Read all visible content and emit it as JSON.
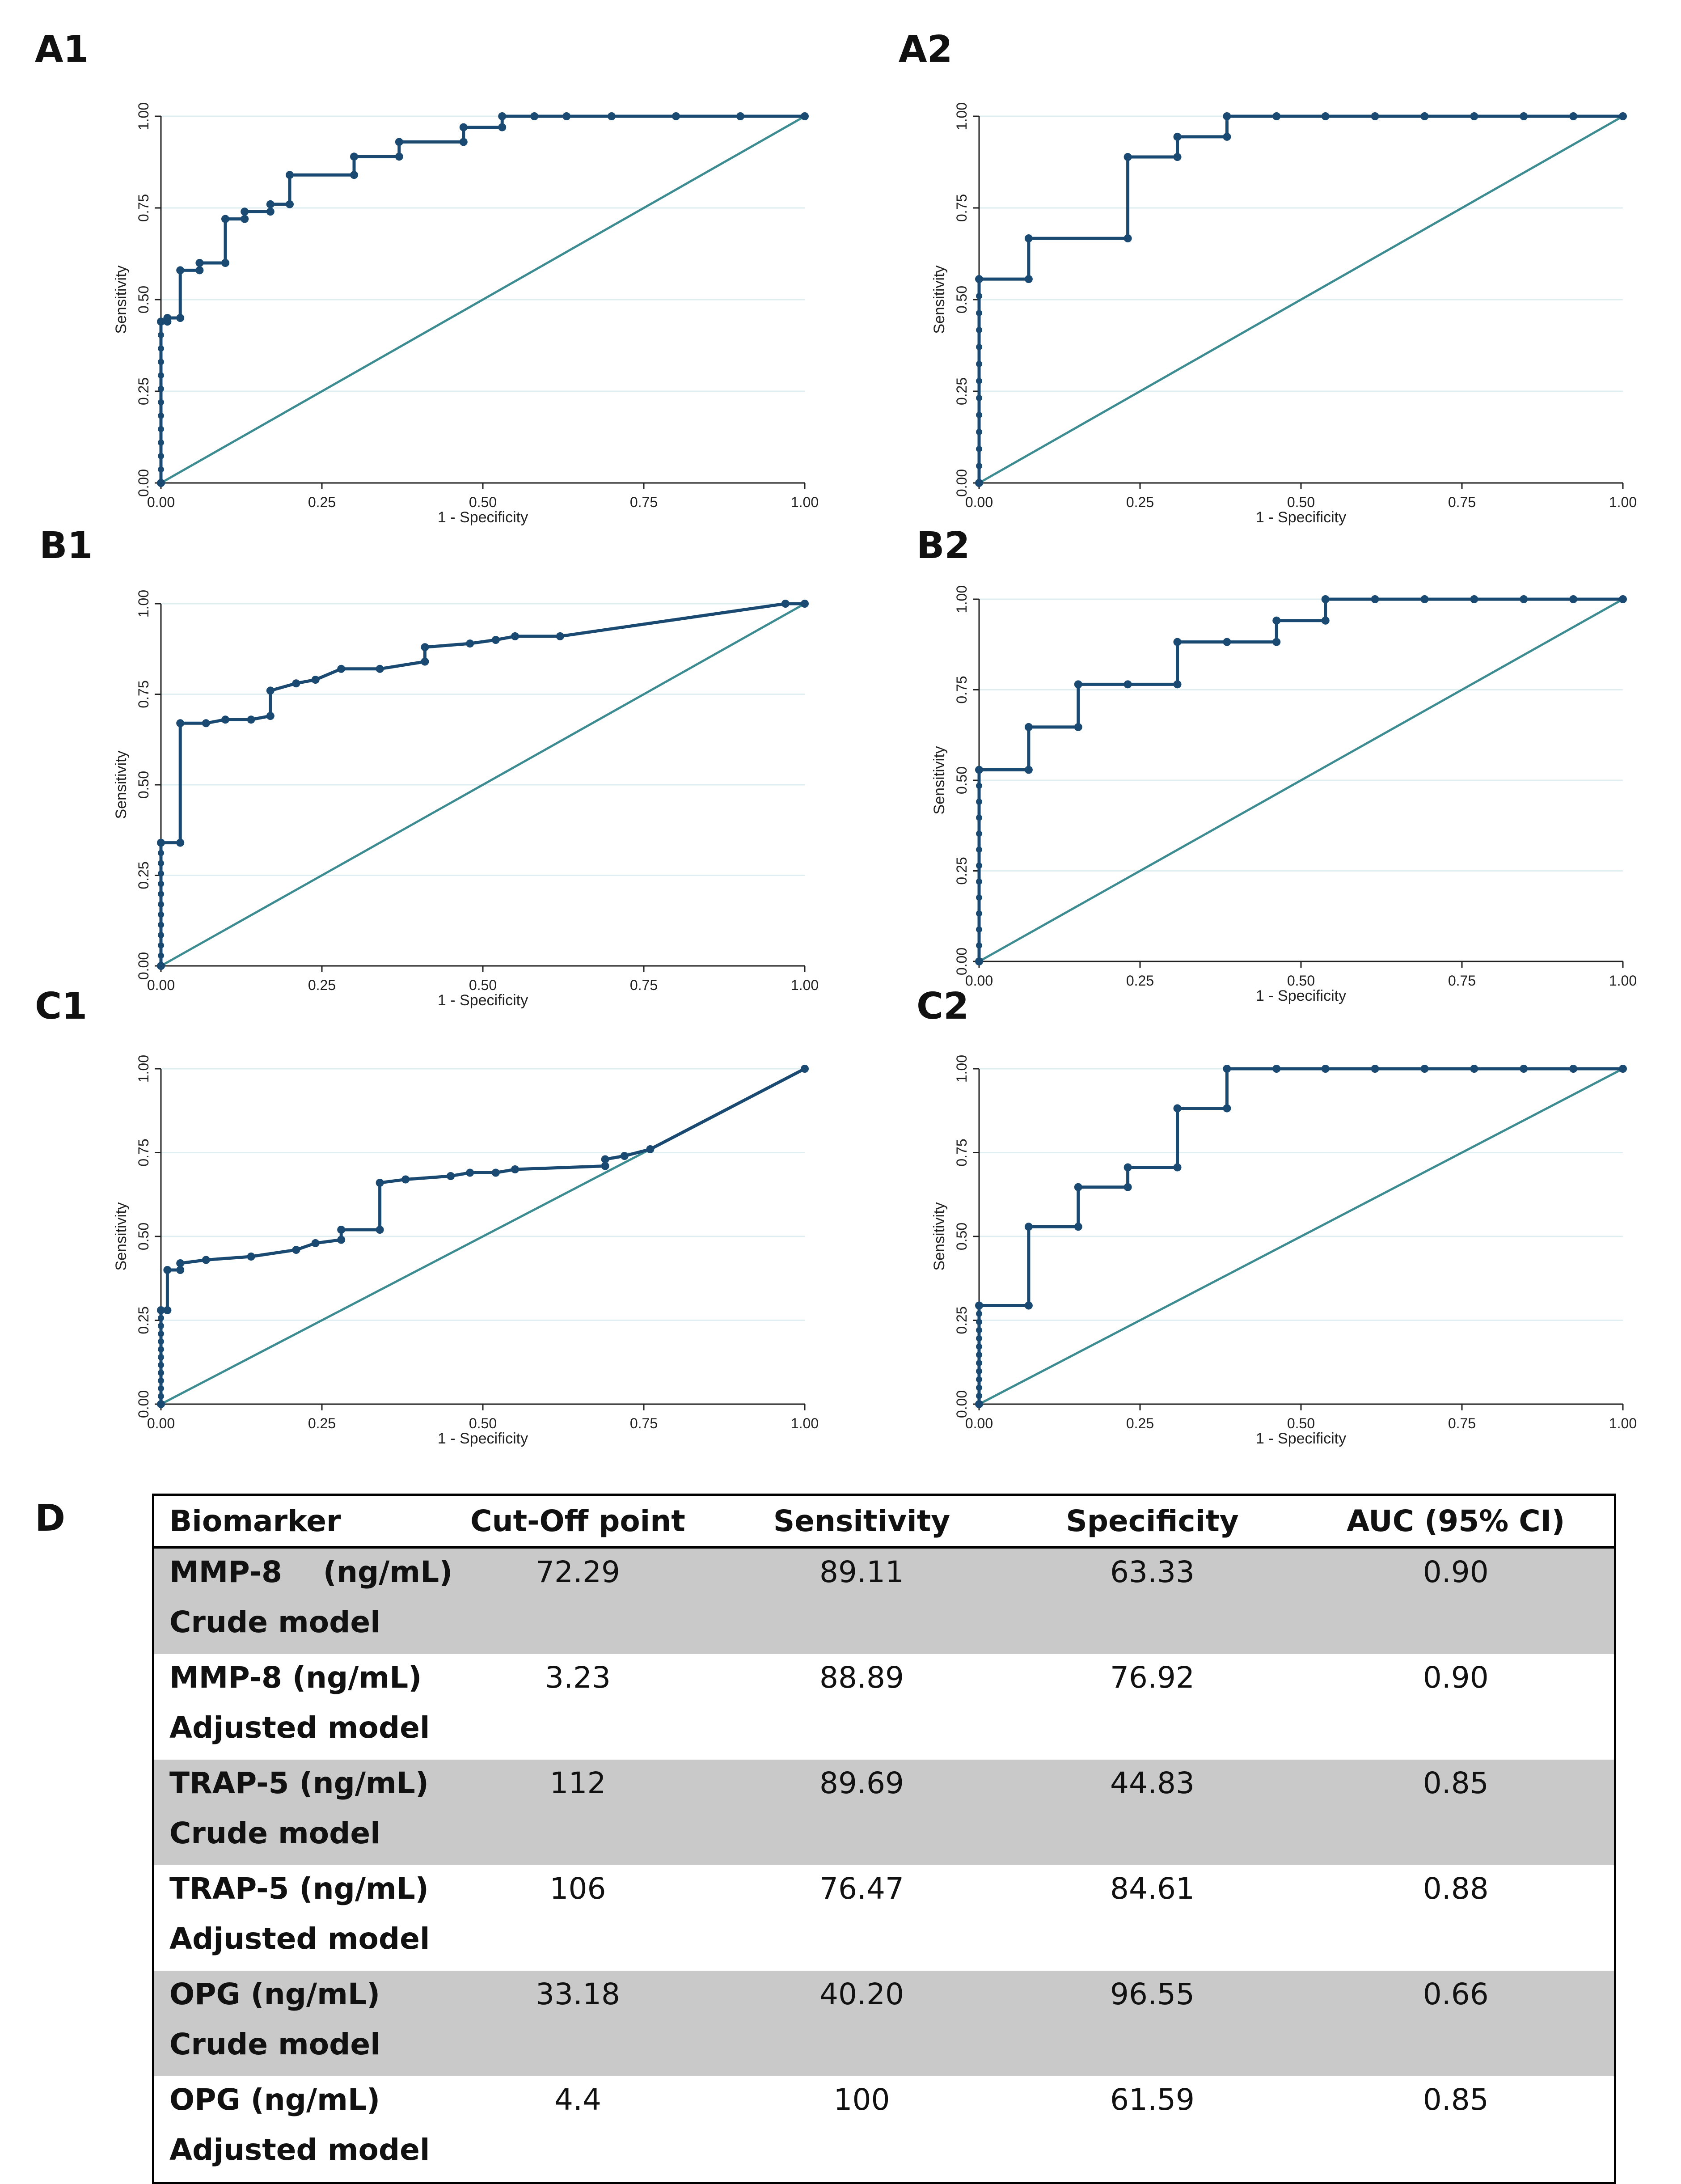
{
  "panel_labels": {
    "A1": "A1",
    "A2": "A2",
    "B1": "B1",
    "B2": "B2",
    "C1": "C1",
    "C2": "C2",
    "D": "D"
  },
  "colors": {
    "roc": "#1a4a72",
    "diagonal": "#3d8c91",
    "grid": "#dfeef0",
    "shade": "#c9c9c9"
  },
  "chart_data": [
    {
      "id": "A1",
      "type": "line",
      "title": "",
      "xlabel": "1 - Specificity",
      "ylabel": "Sensitivity",
      "xlim": [
        0,
        1
      ],
      "ylim": [
        0,
        1
      ],
      "xticks": [
        "0.00",
        "0.25",
        "0.50",
        "0.75",
        "1.00"
      ],
      "yticks": [
        "0.00",
        "0.25",
        "0.50",
        "0.75",
        "1.00"
      ],
      "x": [
        0,
        0,
        0.01,
        0.01,
        0.03,
        0.03,
        0.06,
        0.06,
        0.1,
        0.1,
        0.13,
        0.13,
        0.17,
        0.17,
        0.2,
        0.2,
        0.3,
        0.3,
        0.37,
        0.37,
        0.47,
        0.47,
        0.53,
        0.53,
        0.58,
        0.63,
        0.7,
        0.8,
        0.9,
        1.0
      ],
      "y": [
        0,
        0.44,
        0.44,
        0.45,
        0.45,
        0.58,
        0.58,
        0.6,
        0.6,
        0.72,
        0.72,
        0.74,
        0.74,
        0.76,
        0.76,
        0.84,
        0.84,
        0.89,
        0.89,
        0.93,
        0.93,
        0.97,
        0.97,
        1.0,
        1.0,
        1.0,
        1.0,
        1.0,
        1.0,
        1.0
      ]
    },
    {
      "id": "A2",
      "type": "line",
      "title": "",
      "xlabel": "1 - Specificity",
      "ylabel": "Sensitivity",
      "xlim": [
        0,
        1
      ],
      "ylim": [
        0,
        1
      ],
      "xticks": [
        "0.00",
        "0.25",
        "0.50",
        "0.75",
        "1.00"
      ],
      "yticks": [
        "0.00",
        "0.25",
        "0.50",
        "0.75",
        "1.00"
      ],
      "x": [
        0,
        0,
        0.077,
        0.077,
        0.231,
        0.231,
        0.308,
        0.308,
        0.385,
        0.385,
        0.462,
        0.538,
        0.615,
        0.692,
        0.769,
        0.846,
        0.923,
        1.0
      ],
      "y": [
        0,
        0.556,
        0.556,
        0.667,
        0.667,
        0.889,
        0.889,
        0.944,
        0.944,
        1.0,
        1.0,
        1.0,
        1.0,
        1.0,
        1.0,
        1.0,
        1.0,
        1.0
      ]
    },
    {
      "id": "B1",
      "type": "line",
      "title": "",
      "xlabel": "1 - Specificity",
      "ylabel": "Sensitivity",
      "xlim": [
        0,
        1
      ],
      "ylim": [
        0,
        1
      ],
      "xticks": [
        "0.00",
        "0.25",
        "0.50",
        "0.75",
        "1.00"
      ],
      "yticks": [
        "0.00",
        "0.25",
        "0.50",
        "0.75",
        "1.00"
      ],
      "x": [
        0,
        0,
        0.03,
        0.03,
        0.07,
        0.1,
        0.14,
        0.17,
        0.17,
        0.21,
        0.24,
        0.28,
        0.34,
        0.41,
        0.41,
        0.48,
        0.52,
        0.55,
        0.62,
        0.97,
        1.0
      ],
      "y": [
        0,
        0.34,
        0.34,
        0.67,
        0.67,
        0.68,
        0.68,
        0.69,
        0.76,
        0.78,
        0.79,
        0.82,
        0.82,
        0.84,
        0.88,
        0.89,
        0.9,
        0.91,
        0.91,
        1.0,
        1.0
      ]
    },
    {
      "id": "B2",
      "type": "line",
      "title": "",
      "xlabel": "1 - Specificity",
      "ylabel": "Sensitivity",
      "xlim": [
        0,
        1
      ],
      "ylim": [
        0,
        1
      ],
      "xticks": [
        "0.00",
        "0.25",
        "0.50",
        "0.75",
        "1.00"
      ],
      "yticks": [
        "0.00",
        "0.25",
        "0.50",
        "0.75",
        "1.00"
      ],
      "x": [
        0,
        0,
        0.077,
        0.077,
        0.154,
        0.154,
        0.231,
        0.308,
        0.308,
        0.385,
        0.462,
        0.462,
        0.538,
        0.538,
        0.615,
        0.692,
        0.769,
        0.846,
        0.923,
        1.0
      ],
      "y": [
        0,
        0.529,
        0.529,
        0.647,
        0.647,
        0.765,
        0.765,
        0.765,
        0.882,
        0.882,
        0.882,
        0.941,
        0.941,
        1.0,
        1.0,
        1.0,
        1.0,
        1.0,
        1.0,
        1.0
      ]
    },
    {
      "id": "C1",
      "type": "line",
      "title": "",
      "xlabel": "1 - Specificity",
      "ylabel": "Sensitivity",
      "xlim": [
        0,
        1
      ],
      "ylim": [
        0,
        1
      ],
      "xticks": [
        "0.00",
        "0.25",
        "0.50",
        "0.75",
        "1.00"
      ],
      "yticks": [
        "0.00",
        "0.25",
        "0.50",
        "0.75",
        "1.00"
      ],
      "x": [
        0,
        0,
        0.01,
        0.01,
        0.03,
        0.03,
        0.07,
        0.14,
        0.21,
        0.24,
        0.28,
        0.28,
        0.34,
        0.34,
        0.38,
        0.45,
        0.48,
        0.52,
        0.55,
        0.69,
        0.69,
        0.72,
        0.76,
        1.0
      ],
      "y": [
        0,
        0.28,
        0.28,
        0.4,
        0.4,
        0.42,
        0.43,
        0.44,
        0.46,
        0.48,
        0.49,
        0.52,
        0.52,
        0.66,
        0.67,
        0.68,
        0.69,
        0.69,
        0.7,
        0.71,
        0.73,
        0.74,
        0.76,
        1.0
      ]
    },
    {
      "id": "C2",
      "type": "line",
      "title": "",
      "xlabel": "1 - Specificity",
      "ylabel": "Sensitivity",
      "xlim": [
        0,
        1
      ],
      "ylim": [
        0,
        1
      ],
      "xticks": [
        "0.00",
        "0.25",
        "0.50",
        "0.75",
        "1.00"
      ],
      "yticks": [
        "0.00",
        "0.25",
        "0.50",
        "0.75",
        "1.00"
      ],
      "x": [
        0,
        0,
        0.077,
        0.077,
        0.154,
        0.154,
        0.231,
        0.231,
        0.308,
        0.308,
        0.385,
        0.385,
        0.462,
        0.538,
        0.615,
        0.692,
        0.769,
        0.846,
        0.923,
        1.0
      ],
      "y": [
        0,
        0.294,
        0.294,
        0.529,
        0.529,
        0.647,
        0.647,
        0.706,
        0.706,
        0.882,
        0.882,
        1.0,
        1.0,
        1.0,
        1.0,
        1.0,
        1.0,
        1.0,
        1.0,
        1.0
      ]
    },
    {
      "id": "D",
      "type": "table",
      "columns": [
        "Biomarker",
        "Cut-Off point",
        "Sensitivity",
        "Specificity",
        "AUC (95% CI)"
      ],
      "rows": [
        {
          "biomarker": "MMP-8    (ng/mL)",
          "model": "Crude model",
          "cutoff": "72.29",
          "sensitivity": "89.11",
          "specificity": "63.33",
          "auc": "0.90",
          "shaded": true
        },
        {
          "biomarker": "MMP-8 (ng/mL)",
          "model": "Adjusted model",
          "cutoff": "3.23",
          "sensitivity": "88.89",
          "specificity": "76.92",
          "auc": "0.90",
          "shaded": false
        },
        {
          "biomarker": "TRAP-5 (ng/mL)",
          "model": "Crude model",
          "cutoff": "112",
          "sensitivity": "89.69",
          "specificity": "44.83",
          "auc": "0.85",
          "shaded": true
        },
        {
          "biomarker": "TRAP-5 (ng/mL)",
          "model": "Adjusted model",
          "cutoff": "106",
          "sensitivity": "76.47",
          "specificity": "84.61",
          "auc": "0.88",
          "shaded": false
        },
        {
          "biomarker": "OPG (ng/mL)",
          "model": "Crude model",
          "cutoff": "33.18",
          "sensitivity": "40.20",
          "specificity": "96.55",
          "auc": "0.66",
          "shaded": true
        },
        {
          "biomarker": "OPG (ng/mL)",
          "model": "Adjusted model",
          "cutoff": "4.4",
          "sensitivity": "100",
          "specificity": "61.59",
          "auc": "0.85",
          "shaded": false
        }
      ]
    }
  ]
}
